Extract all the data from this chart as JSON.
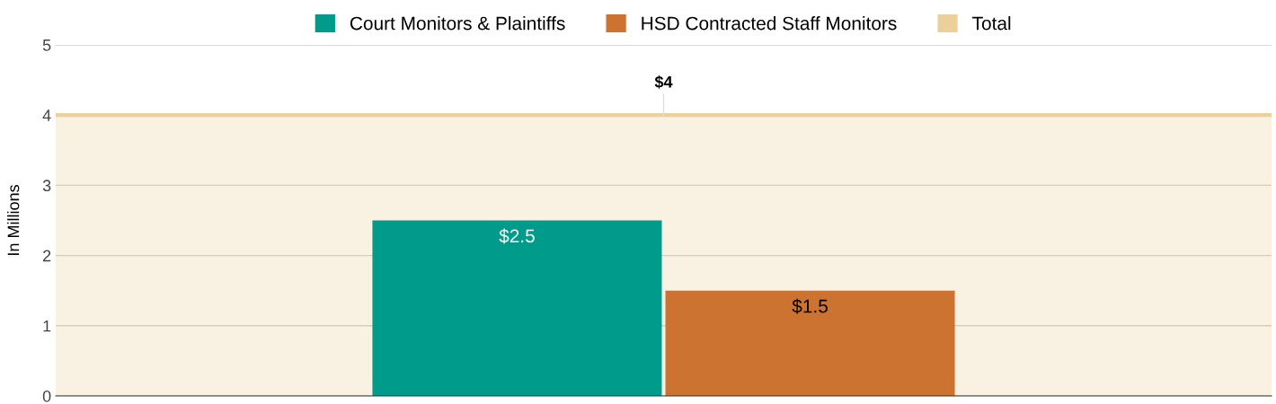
{
  "chart_data": {
    "type": "bar",
    "ylabel": "In Millions",
    "categories": [
      null
    ],
    "series": [
      {
        "name": "Court Monitors & Plaintiffs",
        "color": "#009b8a",
        "values": [
          2.5
        ],
        "value_labels": [
          "$2.5"
        ]
      },
      {
        "name": "HSD Contracted Staff Monitors",
        "color": "#cc7332",
        "values": [
          1.5
        ],
        "value_labels": [
          "$1.5"
        ]
      }
    ],
    "bands": [
      {
        "axis": "y",
        "from": 0,
        "to": 4,
        "label": "Total",
        "color": "#ecd09c"
      }
    ],
    "ref_lines": [
      {
        "axis": "y",
        "value": 4,
        "label": "$4",
        "color": "#ecd09c"
      }
    ],
    "ylim": [
      0,
      5
    ],
    "yticks": [
      0,
      1,
      2,
      3,
      4,
      5
    ],
    "grid": "y",
    "legend": "top"
  }
}
